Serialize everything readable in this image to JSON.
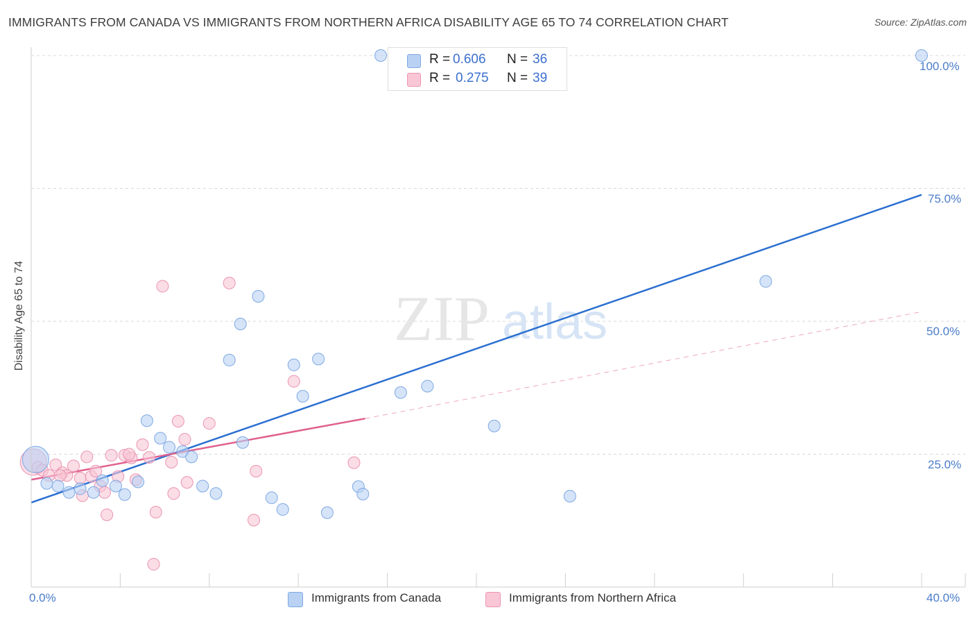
{
  "title": "IMMIGRANTS FROM CANADA VS IMMIGRANTS FROM NORTHERN AFRICA DISABILITY AGE 65 TO 74 CORRELATION CHART",
  "source": "Source: ZipAtlas.com",
  "watermark": {
    "zip": "ZIP",
    "atlas": "atlas"
  },
  "colors": {
    "canada_fill": "#b9d2f3",
    "canada_stroke": "#7ea8e3",
    "canada_line": "#2b6fd0",
    "africa_fill": "#f9c6d6",
    "africa_stroke": "#eb94b1",
    "africa_line": "#e0608e",
    "grid": "#d8d8d8",
    "axis_text": "#4a7cc9"
  },
  "legend": {
    "rows": [
      {
        "r_label": "R = ",
        "r_value": "0.606",
        "n_label": "N = ",
        "n_value": "36"
      },
      {
        "r_label": "R = ",
        "r_value": "0.275",
        "n_label": "N = ",
        "n_value": "39"
      }
    ]
  },
  "chart_data": {
    "type": "scatter",
    "title": "IMMIGRANTS FROM CANADA VS IMMIGRANTS FROM NORTHERN AFRICA DISABILITY AGE 65 TO 74 CORRELATION CHART",
    "xlabel": "",
    "ylabel": "Disability Age 65 to 74",
    "xlim": [
      0,
      40
    ],
    "ylim": [
      0,
      100
    ],
    "x_tick_labels": [
      "0.0%",
      "40.0%"
    ],
    "y_tick_labels": [
      "25.0%",
      "50.0%",
      "75.0%",
      "100.0%"
    ],
    "y_ticks": [
      25,
      50,
      75,
      100
    ],
    "series": [
      {
        "name": "Immigrants from Canada",
        "r": 0.606,
        "n": 36,
        "trend": {
          "x": [
            0,
            40
          ],
          "y": [
            15.9,
            73.8
          ],
          "style": "solid"
        },
        "points": [
          {
            "x": 0.2,
            "y": 24.0,
            "big": true
          },
          {
            "x": 0.7,
            "y": 19.5
          },
          {
            "x": 1.2,
            "y": 19.0
          },
          {
            "x": 1.7,
            "y": 17.8
          },
          {
            "x": 2.2,
            "y": 18.5
          },
          {
            "x": 2.8,
            "y": 17.8
          },
          {
            "x": 3.2,
            "y": 20.0
          },
          {
            "x": 3.8,
            "y": 19.0
          },
          {
            "x": 4.2,
            "y": 17.4
          },
          {
            "x": 4.8,
            "y": 19.8
          },
          {
            "x": 5.2,
            "y": 31.3
          },
          {
            "x": 5.8,
            "y": 28.0
          },
          {
            "x": 6.2,
            "y": 26.3
          },
          {
            "x": 6.8,
            "y": 25.5
          },
          {
            "x": 7.2,
            "y": 24.5
          },
          {
            "x": 7.7,
            "y": 19.0
          },
          {
            "x": 8.3,
            "y": 17.6
          },
          {
            "x": 8.9,
            "y": 42.7
          },
          {
            "x": 9.4,
            "y": 49.5
          },
          {
            "x": 9.5,
            "y": 27.2
          },
          {
            "x": 10.2,
            "y": 54.7
          },
          {
            "x": 10.8,
            "y": 16.8
          },
          {
            "x": 11.3,
            "y": 14.6
          },
          {
            "x": 11.8,
            "y": 41.8
          },
          {
            "x": 12.2,
            "y": 35.9
          },
          {
            "x": 12.9,
            "y": 42.9
          },
          {
            "x": 13.3,
            "y": 14.0
          },
          {
            "x": 14.7,
            "y": 18.9
          },
          {
            "x": 14.9,
            "y": 17.5
          },
          {
            "x": 15.7,
            "y": 100.0
          },
          {
            "x": 16.6,
            "y": 36.6
          },
          {
            "x": 17.8,
            "y": 37.8
          },
          {
            "x": 20.8,
            "y": 30.3
          },
          {
            "x": 24.2,
            "y": 17.1
          },
          {
            "x": 33.0,
            "y": 57.5
          },
          {
            "x": 40.0,
            "y": 100.0
          }
        ]
      },
      {
        "name": "Immigrants from Northern Africa",
        "r": 0.275,
        "n": 39,
        "trend": {
          "x": [
            0,
            15
          ],
          "y": [
            20.2,
            31.7
          ],
          "style": "solid",
          "extended": {
            "x": [
              15,
              40
            ],
            "y": [
              31.7,
              51.8
            ],
            "style": "dashed"
          }
        },
        "points": [
          {
            "x": 0.1,
            "y": 23.5,
            "big": true
          },
          {
            "x": 0.3,
            "y": 22.5
          },
          {
            "x": 0.5,
            "y": 22.0
          },
          {
            "x": 0.8,
            "y": 21.0
          },
          {
            "x": 1.1,
            "y": 23.0
          },
          {
            "x": 1.4,
            "y": 21.5
          },
          {
            "x": 1.6,
            "y": 21.0
          },
          {
            "x": 1.9,
            "y": 22.8
          },
          {
            "x": 2.2,
            "y": 20.5
          },
          {
            "x": 2.3,
            "y": 17.2
          },
          {
            "x": 2.5,
            "y": 24.5
          },
          {
            "x": 2.7,
            "y": 20.8
          },
          {
            "x": 2.9,
            "y": 21.8
          },
          {
            "x": 3.1,
            "y": 19.0
          },
          {
            "x": 3.3,
            "y": 17.8
          },
          {
            "x": 3.4,
            "y": 13.6
          },
          {
            "x": 3.6,
            "y": 24.8
          },
          {
            "x": 3.9,
            "y": 20.8
          },
          {
            "x": 4.2,
            "y": 24.8
          },
          {
            "x": 4.5,
            "y": 24.3
          },
          {
            "x": 4.7,
            "y": 20.2
          },
          {
            "x": 5.0,
            "y": 26.8
          },
          {
            "x": 5.3,
            "y": 24.4
          },
          {
            "x": 5.5,
            "y": 4.3
          },
          {
            "x": 5.6,
            "y": 14.1
          },
          {
            "x": 5.9,
            "y": 56.6
          },
          {
            "x": 6.3,
            "y": 23.5
          },
          {
            "x": 6.4,
            "y": 17.6
          },
          {
            "x": 6.6,
            "y": 31.2
          },
          {
            "x": 6.9,
            "y": 27.8
          },
          {
            "x": 7.0,
            "y": 19.7
          },
          {
            "x": 8.0,
            "y": 30.8
          },
          {
            "x": 8.9,
            "y": 57.2
          },
          {
            "x": 10.0,
            "y": 12.6
          },
          {
            "x": 10.1,
            "y": 21.8
          },
          {
            "x": 11.8,
            "y": 38.7
          },
          {
            "x": 14.5,
            "y": 23.4
          },
          {
            "x": 1.3,
            "y": 21.0
          },
          {
            "x": 4.4,
            "y": 25.0
          }
        ]
      }
    ],
    "legend_position": "top-center"
  }
}
